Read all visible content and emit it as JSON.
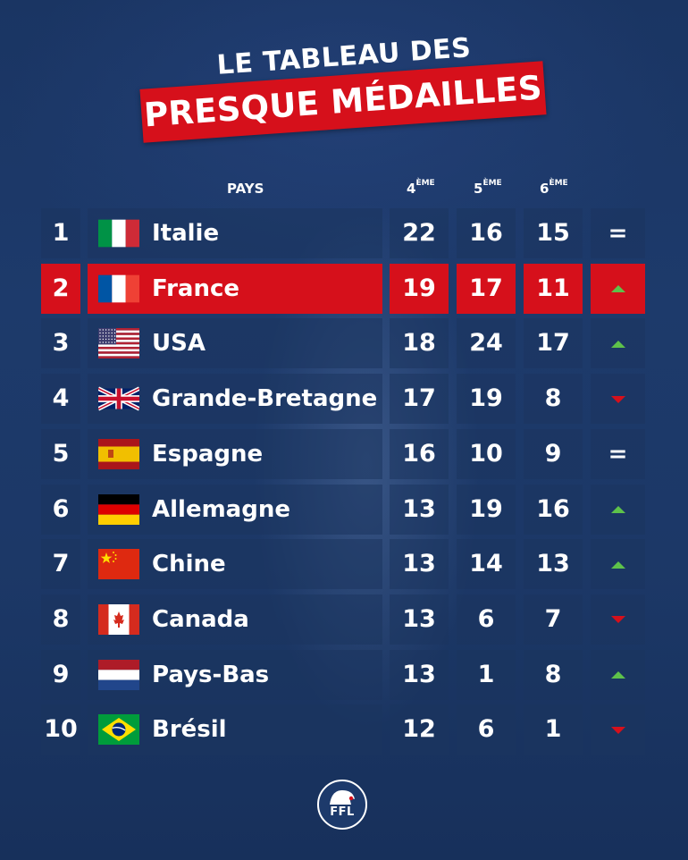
{
  "title": {
    "line1": "LE TABLEAU DES",
    "line2": "PRESQUE MÉDAILLES"
  },
  "header": {
    "pays": "PAYS",
    "col4": "4",
    "col4_sup": "ÈME",
    "col5": "5",
    "col5_sup": "ÈME",
    "col6": "6",
    "col6_sup": "ÈME"
  },
  "colors": {
    "accent_red": "#d6101b",
    "background": "#1d3a6b",
    "trend_up": "#5ec24a",
    "trend_down": "#d6101b"
  },
  "rows": [
    {
      "rank": "1",
      "country": "Italie",
      "flag": "italy-flag-icon",
      "v4": "22",
      "v5": "16",
      "v6": "15",
      "trend": "same",
      "trend_text": "=",
      "highlight": false
    },
    {
      "rank": "2",
      "country": "France",
      "flag": "france-flag-icon",
      "v4": "19",
      "v5": "17",
      "v6": "11",
      "trend": "up",
      "trend_text": "",
      "highlight": true
    },
    {
      "rank": "3",
      "country": "USA",
      "flag": "usa-flag-icon",
      "v4": "18",
      "v5": "24",
      "v6": "17",
      "trend": "up",
      "trend_text": "",
      "highlight": false
    },
    {
      "rank": "4",
      "country": "Grande-Bretagne",
      "flag": "uk-flag-icon",
      "v4": "17",
      "v5": "19",
      "v6": "8",
      "trend": "down",
      "trend_text": "",
      "highlight": false
    },
    {
      "rank": "5",
      "country": "Espagne",
      "flag": "spain-flag-icon",
      "v4": "16",
      "v5": "10",
      "v6": "9",
      "trend": "same",
      "trend_text": "=",
      "highlight": false
    },
    {
      "rank": "6",
      "country": "Allemagne",
      "flag": "germany-flag-icon",
      "v4": "13",
      "v5": "19",
      "v6": "16",
      "trend": "up",
      "trend_text": "",
      "highlight": false
    },
    {
      "rank": "7",
      "country": "Chine",
      "flag": "china-flag-icon",
      "v4": "13",
      "v5": "14",
      "v6": "13",
      "trend": "up",
      "trend_text": "",
      "highlight": false
    },
    {
      "rank": "8",
      "country": "Canada",
      "flag": "canada-flag-icon",
      "v4": "13",
      "v5": "6",
      "v6": "7",
      "trend": "down",
      "trend_text": "",
      "highlight": false
    },
    {
      "rank": "9",
      "country": "Pays-Bas",
      "flag": "netherlands-flag-icon",
      "v4": "13",
      "v5": "1",
      "v6": "8",
      "trend": "up",
      "trend_text": "",
      "highlight": false
    },
    {
      "rank": "10",
      "country": "Brésil",
      "flag": "brazil-flag-icon",
      "v4": "12",
      "v5": "6",
      "v6": "1",
      "trend": "down",
      "trend_text": "",
      "highlight": false
    }
  ],
  "logo": {
    "text": "FFL",
    "icon": "ffl-logo-icon"
  }
}
